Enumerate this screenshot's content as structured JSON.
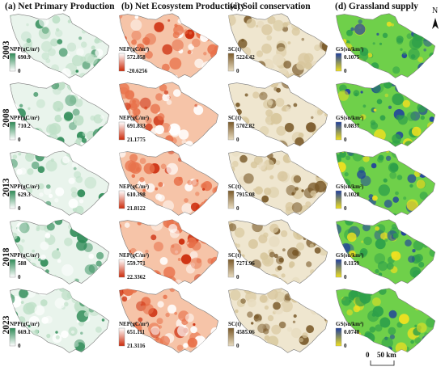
{
  "columns": [
    {
      "id": "npp",
      "title": "(a) Net Primary Production",
      "unit": "NPP(gC/m²)"
    },
    {
      "id": "nep",
      "title": "(b) Net Ecosystem Productivity",
      "unit": "NEP(gC/m²)"
    },
    {
      "id": "sc",
      "title": "(c) Soil conservation",
      "unit": "SC(t)"
    },
    {
      "id": "gs",
      "title": "(d) Grassland supply",
      "unit": "GS(su/km²)"
    }
  ],
  "years": [
    "2003",
    "2008",
    "2013",
    "2018",
    "2023"
  ],
  "legends": {
    "npp": [
      {
        "max": "690.9",
        "min": "0"
      },
      {
        "max": "710.2",
        "min": "0"
      },
      {
        "max": "629.3",
        "min": "0"
      },
      {
        "max": "588",
        "min": "0"
      },
      {
        "max": "669.1",
        "min": "0"
      }
    ],
    "nep": [
      {
        "max": "572.858",
        "min": "-20.6256"
      },
      {
        "max": "691.833",
        "min": "21.1775"
      },
      {
        "max": "610.398",
        "min": "21.8122"
      },
      {
        "max": "559.771",
        "min": "22.3362"
      },
      {
        "max": "651.111",
        "min": "21.3116"
      }
    ],
    "sc": [
      {
        "max": "5224.42",
        "min": "0"
      },
      {
        "max": "5702.82",
        "min": "0"
      },
      {
        "max": "7915.08",
        "min": "0"
      },
      {
        "max": "7271.96",
        "min": "0"
      },
      {
        "max": "4585.06",
        "min": "0"
      }
    ],
    "gs": [
      {
        "max": "0.1075",
        "min": "0"
      },
      {
        "max": "0.0837",
        "min": "0"
      },
      {
        "max": "0.1028",
        "min": "0"
      },
      {
        "max": "0.1159",
        "min": "0"
      },
      {
        "max": "0.0748",
        "min": "0"
      }
    ]
  },
  "north_arrow": "N",
  "scale_bar": {
    "zero": "0",
    "label": "50 km"
  },
  "colors": {
    "npp": {
      "low": "#ffffff",
      "high": "#2e8b57",
      "base": "#e9f4ec",
      "mid": "#bfe0c8"
    },
    "nep": {
      "low": "#cc2a0a",
      "high": "#ffffff",
      "base": "#f6c4a8",
      "mid": "#e8714a"
    },
    "sc": {
      "low": "#e8dcc0",
      "high": "#7a5a2a",
      "base": "#efe6cf",
      "mid": "#d8c79d"
    },
    "gs": {
      "low": "#f0e020",
      "high": "#1f3f9f",
      "base": "#6fd04a",
      "mid": "#2ea04a"
    }
  }
}
